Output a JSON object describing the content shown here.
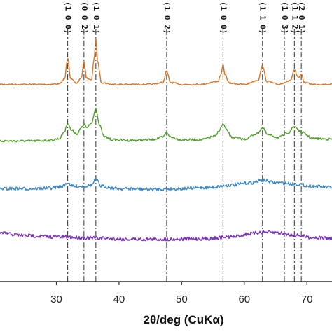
{
  "chart_data": {
    "type": "line",
    "title": "",
    "xlabel": "2θ/deg (CuKα)",
    "ylabel": "",
    "xlim": [
      21,
      74
    ],
    "x_ticks": [
      30,
      40,
      50,
      60,
      70
    ],
    "x_tick_labels": [
      "30",
      "40",
      "50",
      "60",
      "70"
    ],
    "grid": false,
    "legend": "none",
    "reference_lines": [
      {
        "x": 31.8,
        "label": "(1 0 0)"
      },
      {
        "x": 34.4,
        "label": "(0 0 2)"
      },
      {
        "x": 36.3,
        "label": "(1 0 1)"
      },
      {
        "x": 47.6,
        "label": "(1 0 2)"
      },
      {
        "x": 56.6,
        "label": "(1 0 0)"
      },
      {
        "x": 62.9,
        "label": "(1 1 0)"
      },
      {
        "x": 66.4,
        "label": "(1 0 3)"
      },
      {
        "x": 68.0,
        "label": "(1 1 2)"
      },
      {
        "x": 69.1,
        "label": "(2 0 1)"
      }
    ],
    "series": [
      {
        "color": "#d9752a",
        "x": [
          21,
          26,
          29,
          30.5,
          31.3,
          31.8,
          32.3,
          33.2,
          34.0,
          34.4,
          34.8,
          35.6,
          36.0,
          36.3,
          36.6,
          37.2,
          39,
          42,
          45,
          47.0,
          47.6,
          48.2,
          50,
          53,
          55.8,
          56.3,
          56.6,
          56.9,
          57.6,
          60,
          62.2,
          62.9,
          63.6,
          65.5,
          66.4,
          67.4,
          68.0,
          68.6,
          69.1,
          69.6,
          71,
          74
        ],
        "y": [
          0.03,
          0.03,
          0.03,
          0.04,
          0.12,
          0.48,
          0.12,
          0.05,
          0.14,
          0.42,
          0.14,
          0.1,
          0.45,
          0.79,
          0.4,
          0.06,
          0.03,
          0.03,
          0.03,
          0.06,
          0.25,
          0.06,
          0.03,
          0.03,
          0.08,
          0.2,
          0.36,
          0.2,
          0.05,
          0.03,
          0.1,
          0.34,
          0.08,
          0.03,
          0.06,
          0.1,
          0.27,
          0.14,
          0.2,
          0.06,
          0.03,
          0.03
        ]
      },
      {
        "color": "#4f9f2a",
        "x": [
          21,
          26,
          29,
          30.5,
          31.3,
          31.8,
          32.4,
          33.3,
          34.0,
          34.4,
          34.9,
          35.6,
          36.3,
          36.9,
          37.6,
          39,
          42,
          45,
          47.0,
          47.6,
          48.3,
          50,
          53,
          55.4,
          56.0,
          56.6,
          57.2,
          58,
          60,
          62.0,
          62.9,
          63.8,
          65.5,
          67.0,
          68.0,
          69.2,
          71,
          74
        ],
        "y": [
          0.02,
          0.02,
          0.03,
          0.06,
          0.18,
          0.32,
          0.2,
          0.14,
          0.24,
          0.3,
          0.24,
          0.32,
          0.57,
          0.28,
          0.09,
          0.04,
          0.03,
          0.04,
          0.08,
          0.16,
          0.08,
          0.04,
          0.04,
          0.1,
          0.2,
          0.3,
          0.2,
          0.08,
          0.05,
          0.14,
          0.24,
          0.12,
          0.08,
          0.16,
          0.26,
          0.16,
          0.06,
          0.05
        ]
      },
      {
        "color": "#3a86c8",
        "x": [
          21,
          26,
          29,
          31.0,
          31.8,
          32.6,
          34.4,
          35.6,
          36.3,
          37.2,
          40,
          45,
          50,
          54,
          58,
          61,
          63.0,
          65,
          68,
          71,
          74
        ],
        "y": [
          0.02,
          0.02,
          0.03,
          0.06,
          0.12,
          0.06,
          0.06,
          0.08,
          0.17,
          0.06,
          0.02,
          0.01,
          0.02,
          0.04,
          0.08,
          0.12,
          0.16,
          0.12,
          0.1,
          0.06,
          0.04
        ]
      },
      {
        "color": "#7a2fb8",
        "x": [
          21,
          25,
          30,
          36,
          42,
          48,
          54,
          58,
          61,
          63,
          65,
          68,
          71,
          74
        ],
        "y": [
          0.13,
          0.09,
          0.07,
          0.05,
          0.03,
          0.03,
          0.04,
          0.07,
          0.12,
          0.15,
          0.14,
          0.1,
          0.06,
          0.04
        ]
      }
    ]
  }
}
